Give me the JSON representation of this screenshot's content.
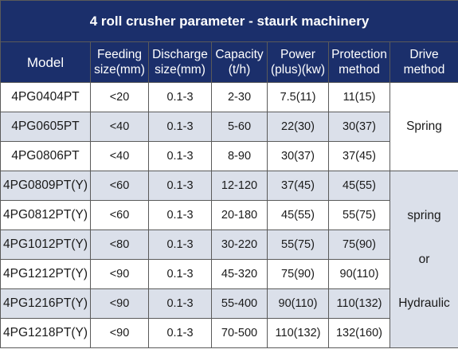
{
  "title": "4 roll crusher parameter - staurk machinery",
  "headers": [
    {
      "line1": "Model",
      "line2": ""
    },
    {
      "line1": "Feeding",
      "line2": "size(mm)"
    },
    {
      "line1": "Discharge",
      "line2": "size(mm)"
    },
    {
      "line1": "Capacity",
      "line2": "(t/h)"
    },
    {
      "line1": "Power",
      "line2": "(plus)(kw)"
    },
    {
      "line1": "Protection",
      "line2": "method"
    },
    {
      "line1": "Drive",
      "line2": "method"
    }
  ],
  "rows": [
    {
      "model": "4PG0404PT",
      "feeding": "<20",
      "discharge": "0.1-3",
      "capacity": "2-30",
      "power": "7.5(11)",
      "protection": "11(15)"
    },
    {
      "model": "4PG0605PT",
      "feeding": "<40",
      "discharge": "0.1-3",
      "capacity": "5-60",
      "power": "22(30)",
      "protection": "30(37)"
    },
    {
      "model": "4PG0806PT",
      "feeding": "<40",
      "discharge": "0.1-3",
      "capacity": "8-90",
      "power": "30(37)",
      "protection": "37(45)"
    },
    {
      "model": "4PG0809PT(Y)",
      "feeding": "<60",
      "discharge": "0.1-3",
      "capacity": "12-120",
      "power": "37(45)",
      "protection": "45(55)"
    },
    {
      "model": "4PG0812PT(Y)",
      "feeding": "<60",
      "discharge": "0.1-3",
      "capacity": "20-180",
      "power": "45(55)",
      "protection": "55(75)"
    },
    {
      "model": "4PG1012PT(Y)",
      "feeding": "<80",
      "discharge": "0.1-3",
      "capacity": "30-220",
      "power": "55(75)",
      "protection": "75(90)"
    },
    {
      "model": "4PG1212PT(Y)",
      "feeding": "<90",
      "discharge": "0.1-3",
      "capacity": "45-320",
      "power": "75(90)",
      "protection": "90(110)"
    },
    {
      "model": "4PG1216PT(Y)",
      "feeding": "<90",
      "discharge": "0.1-3",
      "capacity": "55-400",
      "power": "90(110)",
      "protection": "110(132)"
    },
    {
      "model": "4PG1218PT(Y)",
      "feeding": "<90",
      "discharge": "0.1-3",
      "capacity": "70-500",
      "power": "110(132)",
      "protection": "132(160)"
    }
  ],
  "drive": {
    "group1": "Spring",
    "group2_line1": "spring",
    "group2_line2": "or",
    "group2_line3": "Hydraulic"
  },
  "colors": {
    "header_bg": "#1b2f6b",
    "header_text": "#ffffff",
    "alt_row_bg": "#dbe0ea",
    "border": "#5a5a5a"
  }
}
